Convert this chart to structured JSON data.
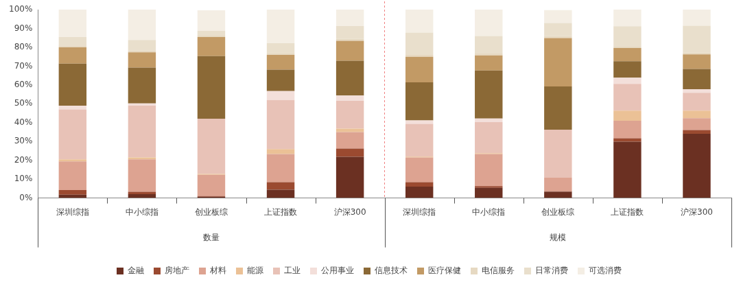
{
  "chart_data": {
    "type": "bar",
    "stacked": true,
    "categories": [
      "深圳综指",
      "中小综指",
      "创业板综",
      "上证指数",
      "沪深300",
      "深圳综指",
      "中小综指",
      "创业板综",
      "上证指数",
      "沪深300"
    ],
    "series": [
      {
        "name": "金融",
        "color": "#6b3022",
        "values": [
          1.8,
          2.0,
          0.7,
          4.4,
          21.9,
          6.0,
          5.4,
          3.3,
          29.9,
          34.1
        ]
      },
      {
        "name": "房地产",
        "color": "#9b4a30",
        "values": [
          2.4,
          1.3,
          0.3,
          4.0,
          4.4,
          2.4,
          0.9,
          0.3,
          1.8,
          2.0
        ]
      },
      {
        "name": "材料",
        "color": "#dda391",
        "values": [
          15.2,
          17.2,
          11.3,
          14.9,
          8.7,
          13.1,
          17.0,
          7.2,
          9.3,
          6.3
        ]
      },
      {
        "name": "能源",
        "color": "#ebc196",
        "values": [
          1.1,
          1.0,
          0.5,
          2.7,
          1.8,
          0.5,
          0.5,
          null,
          5.4,
          4.0
        ]
      },
      {
        "name": "工业",
        "color": "#e8c2b7",
        "values": [
          26.5,
          27.5,
          29.3,
          26.0,
          14.8,
          17.4,
          16.5,
          25.5,
          14.2,
          9.4
        ]
      },
      {
        "name": "公用事业",
        "color": "#f3dfda",
        "values": [
          2.0,
          1.2,
          null,
          4.8,
          2.8,
          1.8,
          1.9,
          null,
          3.3,
          2.0
        ]
      },
      {
        "name": "信息技术",
        "color": "#8b6936",
        "values": [
          22.3,
          19.0,
          33.2,
          11.3,
          18.5,
          20.2,
          25.5,
          22.9,
          8.7,
          10.7
        ]
      },
      {
        "name": "医疗保健",
        "color": "#c29a65",
        "values": [
          8.7,
          8.1,
          10.1,
          7.9,
          10.5,
          13.6,
          8.0,
          25.7,
          7.0,
          7.7
        ]
      },
      {
        "name": "电信服务",
        "color": "#e6d9c2",
        "values": [
          1.0,
          1.0,
          1.0,
          1.0,
          1.0,
          1.0,
          1.0,
          1.0,
          1.0,
          1.0
        ]
      },
      {
        "name": "日常消费",
        "color": "#e9dfcc",
        "values": [
          4.4,
          5.6,
          2.4,
          5.2,
          6.9,
          11.8,
          9.3,
          7.0,
          10.6,
          14.2
        ]
      },
      {
        "name": "可选消费",
        "color": "#f4eee4",
        "values": [
          14.6,
          16.1,
          10.8,
          17.8,
          8.7,
          12.2,
          14.0,
          6.8,
          8.8,
          8.6
        ]
      }
    ],
    "ylim": [
      0,
      100
    ],
    "yticks": [
      {
        "value": 0,
        "label": "0%"
      },
      {
        "value": 10,
        "label": "10%"
      },
      {
        "value": 20,
        "label": "20%"
      },
      {
        "value": 30,
        "label": "30%"
      },
      {
        "value": 40,
        "label": "40%"
      },
      {
        "value": 50,
        "label": "50%"
      },
      {
        "value": 60,
        "label": "60%"
      },
      {
        "value": 70,
        "label": "70%"
      },
      {
        "value": 80,
        "label": "80%"
      },
      {
        "value": 90,
        "label": "90%"
      },
      {
        "value": 100,
        "label": "100%"
      }
    ],
    "annotations": [
      "数量",
      "规模"
    ],
    "grid": false,
    "legend": "bottom"
  }
}
